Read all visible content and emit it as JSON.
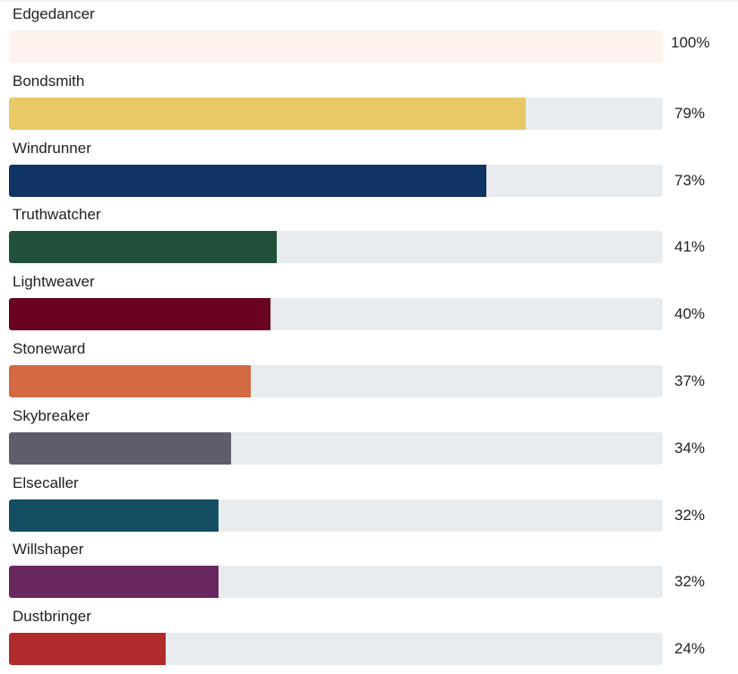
{
  "chart_data": {
    "type": "bar",
    "orientation": "horizontal",
    "categories": [
      "Edgedancer",
      "Bondsmith",
      "Windrunner",
      "Truthwatcher",
      "Lightweaver",
      "Stoneward",
      "Skybreaker",
      "Elsecaller",
      "Willshaper",
      "Dustbringer"
    ],
    "values": [
      100,
      79,
      73,
      41,
      40,
      37,
      34,
      32,
      32,
      24
    ],
    "value_labels": [
      "100%",
      "79%",
      "73%",
      "41%",
      "40%",
      "37%",
      "34%",
      "32%",
      "32%",
      "24%"
    ],
    "colors": [
      "#fdf2ee",
      "#e9c866",
      "#103464",
      "#1f513b",
      "#6a0220",
      "#d36a41",
      "#5f5d6b",
      "#134e62",
      "#68285f",
      "#b02b2b"
    ],
    "track_color": "#e8ecef",
    "xlim": [
      0,
      100
    ],
    "title": "",
    "xlabel": "",
    "ylabel": ""
  }
}
